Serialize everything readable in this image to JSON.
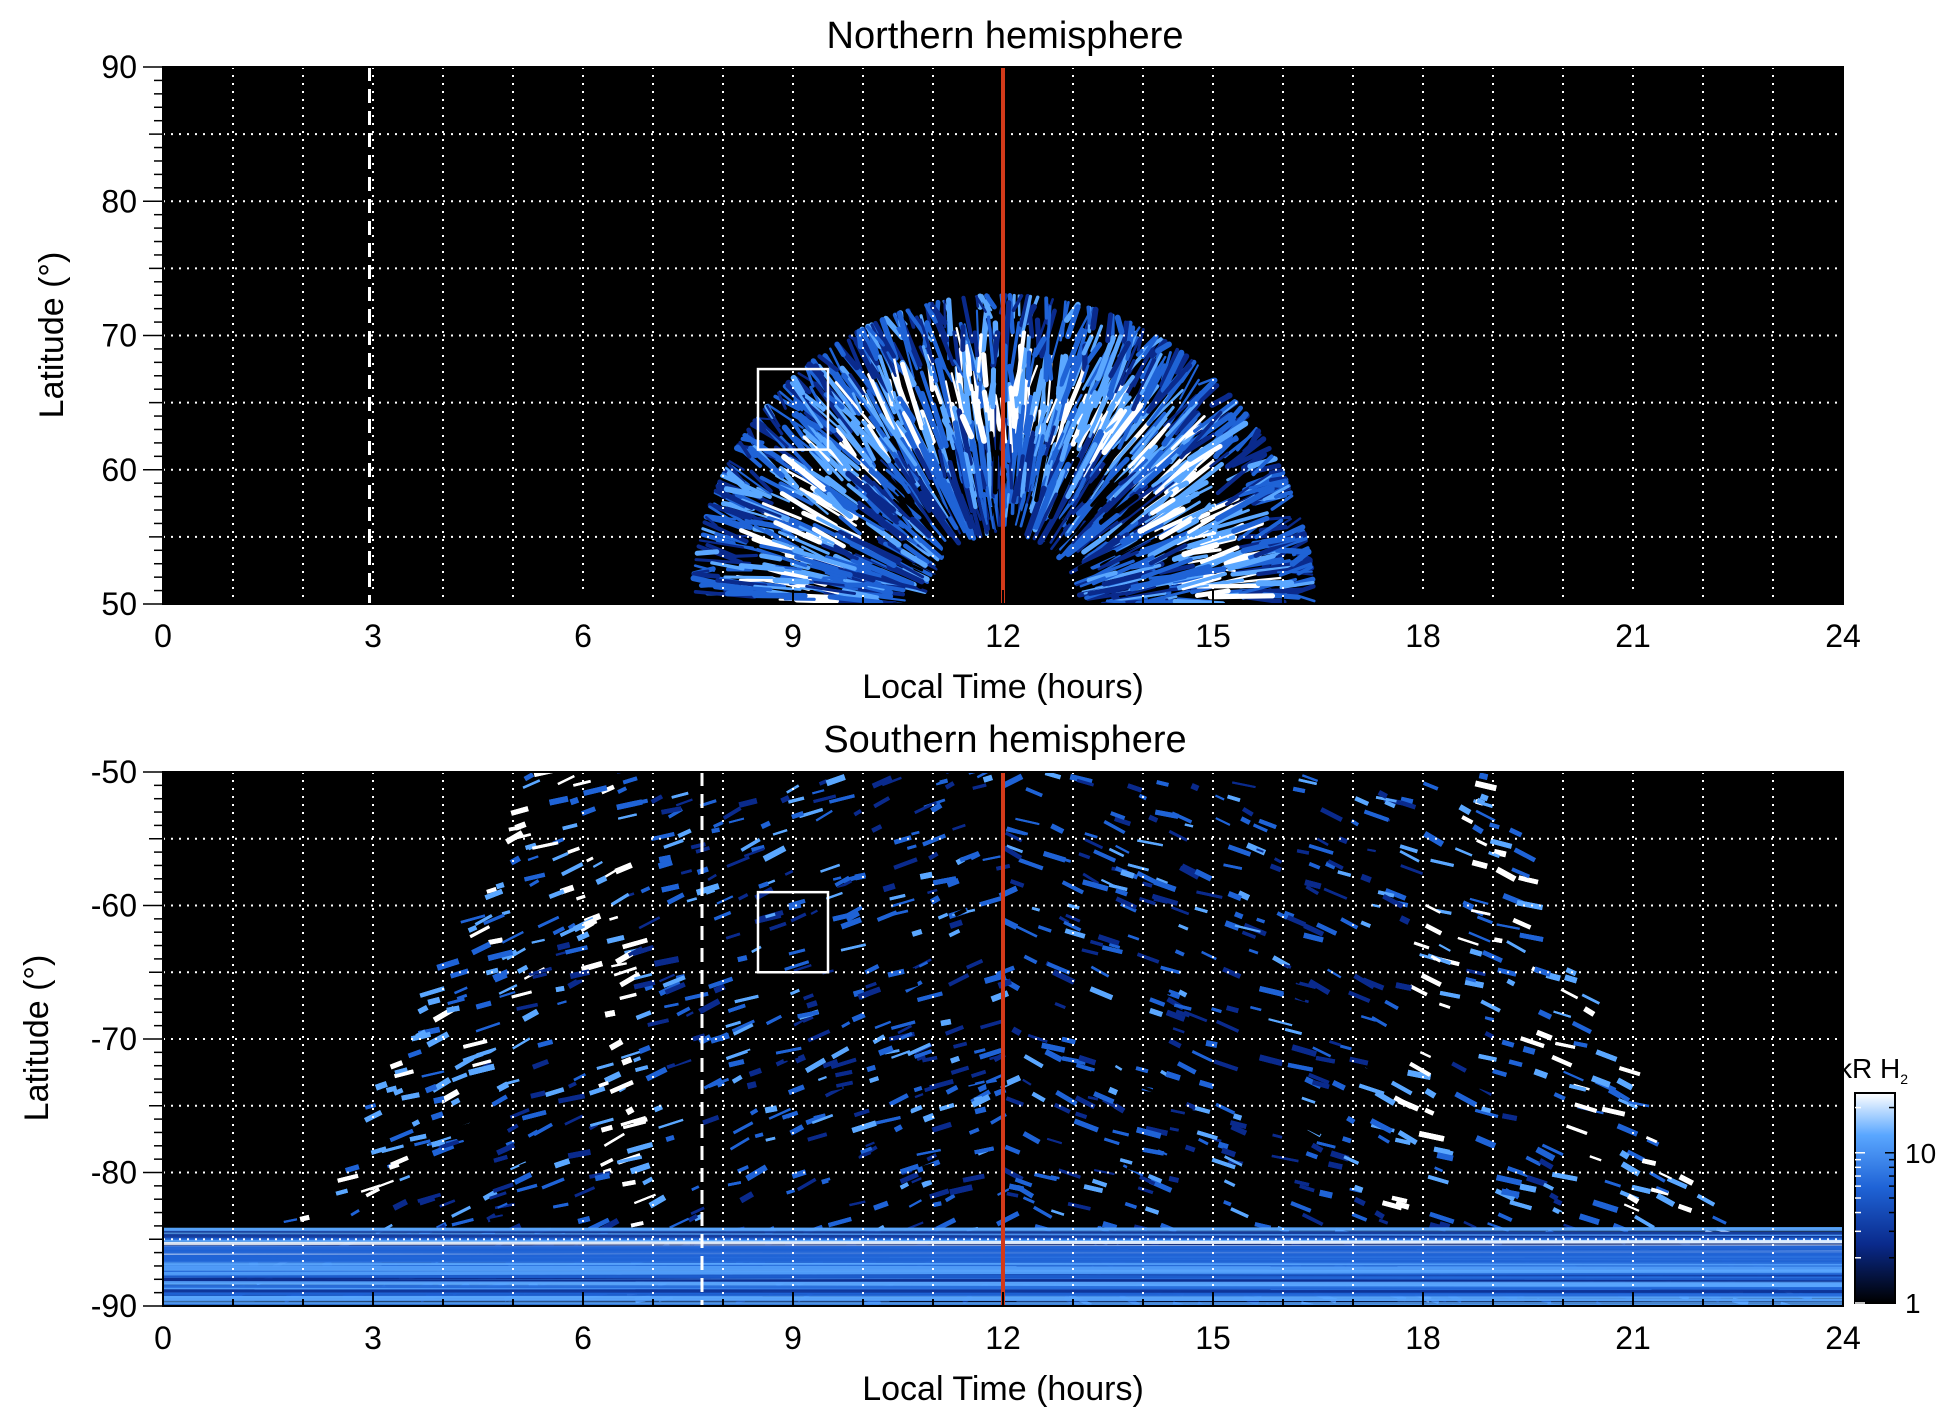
{
  "chart_data": [
    {
      "type": "heatmap",
      "title": "Northern hemisphere",
      "xlabel": "Local Time (hours)",
      "ylabel": "Latitude (°)",
      "xlim": [
        0,
        24
      ],
      "ylim": [
        50,
        90
      ],
      "xticks": [
        "0",
        "3",
        "6",
        "9",
        "12",
        "15",
        "18",
        "21",
        "24"
      ],
      "yticks": [
        "50",
        "60",
        "70",
        "80",
        "90"
      ],
      "grid": true,
      "background": "#000000",
      "colormap": [
        "#000000",
        "#0a2a8c",
        "#1f63d6",
        "#5aa7ff",
        "#ffffff"
      ],
      "emission_region": {
        "lt_min": 7.7,
        "lt_max": 16.6,
        "peak_lat": 73,
        "main_oval_lat": 66
      },
      "noon_line": {
        "x": 12,
        "color": "#d23a1a"
      },
      "dashed_line": {
        "x": 2.95,
        "color": "#ffffff"
      },
      "box": {
        "x": [
          8.5,
          9.5
        ],
        "y": [
          61.5,
          67.5
        ],
        "color": "#ffffff"
      }
    },
    {
      "type": "heatmap",
      "title": "Southern hemisphere",
      "xlabel": "Local Time (hours)",
      "ylabel": "Latitude (°)",
      "xlim": [
        0,
        24
      ],
      "ylim": [
        -90,
        -50
      ],
      "xticks": [
        "0",
        "3",
        "6",
        "9",
        "12",
        "15",
        "18",
        "21",
        "24"
      ],
      "yticks": [
        "-90",
        "-80",
        "-70",
        "-60",
        "-50"
      ],
      "grid": true,
      "background": "#000000",
      "colormap": [
        "#000000",
        "#0a2a8c",
        "#1f63d6",
        "#5aa7ff",
        "#ffffff"
      ],
      "emission_region": {
        "lt_min": 0,
        "lt_max": 24,
        "oval_left_lt": 6,
        "oval_right_lt": 18.4
      },
      "noon_line": {
        "x": 12,
        "color": "#d23a1a"
      },
      "dashed_line": {
        "x": 7.7,
        "color": "#ffffff"
      },
      "box": {
        "x": [
          8.5,
          9.5
        ],
        "y": [
          -65,
          -59
        ],
        "color": "#ffffff"
      },
      "colorbar": {
        "label": "kR H",
        "label_subscript": "2",
        "scale": "log",
        "range": [
          1,
          25
        ],
        "ticks": [
          "1",
          "10"
        ]
      }
    }
  ]
}
